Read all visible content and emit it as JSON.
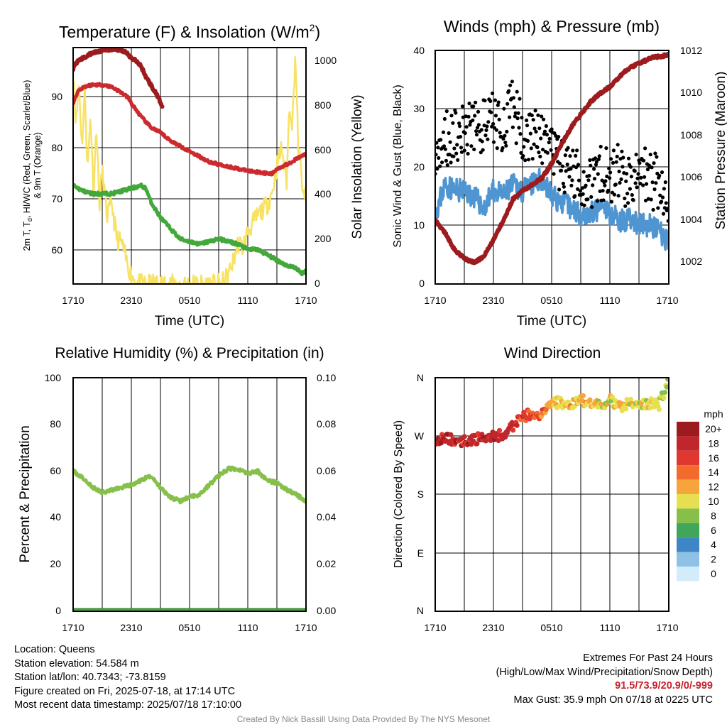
{
  "charts": {
    "tl": {
      "title": "Temperature (F) & Insolation (W/m²)",
      "title_main": "Temperature (F) & Insolation (W/m",
      "title_sup": "2",
      "title_end": ")",
      "xlabel": "Time (UTC)",
      "ylabel_left_line1": "2m T, T",
      "ylabel_left_sub": "d",
      "ylabel_left_rest": ", HI/WC (Red, Green, Scarlet/Blue)",
      "ylabel_left_line2": "& 9m T (Orange)",
      "ylabel_right": "Solar Insolation (Yellow)",
      "yticks_left": [
        "60",
        "70",
        "80",
        "90"
      ],
      "yticks_right": [
        "0",
        "200",
        "400",
        "600",
        "800",
        "1000"
      ],
      "xticks": [
        "1710",
        "2310",
        "0510",
        "1110",
        "1710"
      ]
    },
    "tr": {
      "title": "Winds (mph) & Pressure (mb)",
      "xlabel": "Time (UTC)",
      "ylabel_left": "Sonic Wind & Gust (Blue, Black)",
      "ylabel_right": "Station Pressure (Maroon)",
      "yticks_left": [
        "0",
        "10",
        "20",
        "30",
        "40"
      ],
      "yticks_right": [
        "1002",
        "1004",
        "1006",
        "1008",
        "1010",
        "1012"
      ],
      "xticks": [
        "1710",
        "2310",
        "0510",
        "1110",
        "1710"
      ]
    },
    "bl": {
      "title": "Relative Humidity (%) & Precipitation (in)",
      "ylabel_left": "Percent & Precipitation",
      "yticks_left": [
        "0",
        "20",
        "40",
        "60",
        "80",
        "100"
      ],
      "yticks_right": [
        "0.00",
        "0.02",
        "0.04",
        "0.06",
        "0.08",
        "0.10"
      ],
      "xticks": [
        "1710",
        "2310",
        "0510",
        "1110",
        "1710"
      ]
    },
    "br": {
      "title": "Wind Direction",
      "ylabel_left": "Direction (Colored By Speed)",
      "yticks_left": [
        "N",
        "E",
        "S",
        "W",
        "N"
      ],
      "xticks": [
        "1710",
        "2310",
        "0510",
        "1110",
        "1710"
      ],
      "legend_title": "mph",
      "legend_labels": [
        "20+",
        "18",
        "16",
        "14",
        "12",
        "10",
        "8",
        "6",
        "4",
        "2",
        "0"
      ],
      "legend_colors": [
        "#9b1b1e",
        "#c0272d",
        "#e0382f",
        "#f26a2c",
        "#f8a43c",
        "#e6df4f",
        "#86c04b",
        "#3fa65a",
        "#3f86c6",
        "#8fc1e7",
        "#d3ecfb"
      ]
    }
  },
  "chart_data": [
    {
      "type": "line",
      "title": "Temperature (F) & Insolation (W/m2)",
      "xlabel": "Time (UTC)",
      "x_ticks": [
        "1710",
        "2310",
        "0510",
        "1110",
        "1710"
      ],
      "x_range_hours": [
        0,
        24
      ],
      "ylim_left": [
        53.5,
        98
      ],
      "ylim_right": [
        0,
        1040
      ],
      "colors": {
        "temp": "#cc2a2e",
        "dewpoint": "#43a83a",
        "heat_index": "#9b1b1e",
        "solar": "#f7e264"
      },
      "series": [
        {
          "name": "2m T (Red)",
          "axis": "left",
          "x": [
            0,
            0.5,
            1,
            1.5,
            2,
            3,
            4,
            5,
            5.7,
            6,
            7,
            8,
            9,
            10,
            11,
            12,
            13,
            14,
            15,
            16,
            17,
            18,
            19,
            20,
            20.5,
            21,
            22,
            23,
            23.5,
            24
          ],
          "y": [
            87.5,
            89.8,
            90.5,
            90.8,
            91,
            91,
            90.6,
            89.5,
            88.5,
            87.5,
            85,
            83,
            82,
            80.5,
            79.5,
            78.5,
            77.5,
            76.5,
            76,
            75.6,
            75.2,
            74.8,
            74.6,
            74.3,
            74.2,
            75.2,
            76,
            77,
            77.5,
            78
          ]
        },
        {
          "name": "HI (Scarlet)",
          "axis": "left",
          "x": [
            0,
            0.5,
            1,
            1.5,
            2,
            3,
            4,
            5,
            5.5,
            6,
            6.5,
            7,
            7.5,
            8,
            8.5,
            9.2
          ],
          "y": [
            94,
            95.5,
            96,
            96.5,
            97,
            97.5,
            97.7,
            97.5,
            97,
            96,
            95.5,
            94.5,
            92.5,
            91,
            89.5,
            87
          ]
        },
        {
          "name": "Td (Green)",
          "axis": "left",
          "x": [
            0,
            1,
            2,
            3,
            4,
            5,
            6,
            7,
            7.5,
            8,
            9,
            10,
            11,
            12,
            13,
            14,
            15,
            16,
            17,
            17.5,
            18,
            19,
            20,
            21,
            22,
            23,
            23.5,
            24
          ],
          "y": [
            72,
            71,
            70.5,
            70.5,
            70.5,
            71,
            71.5,
            72,
            71.5,
            69,
            66,
            64,
            62,
            61.5,
            61,
            61.5,
            62,
            61.5,
            61,
            60.5,
            60,
            60,
            59,
            58,
            57,
            56.5,
            55.5,
            56
          ]
        },
        {
          "name": "Solar (Yellow)",
          "axis": "right",
          "x": [
            0,
            0.3,
            0.6,
            0.9,
            1.2,
            1.5,
            1.8,
            2.1,
            2.4,
            2.7,
            3,
            3.5,
            4,
            4.5,
            5,
            5.5,
            6,
            6.5,
            7,
            8,
            10,
            12,
            14,
            15.3,
            16,
            16.5,
            17,
            17.5,
            18,
            19,
            20,
            20.5,
            21,
            21.5,
            22,
            22.3,
            22.6,
            22.9,
            23.2,
            23.5,
            23.8,
            24
          ],
          "y": [
            950,
            700,
            900,
            600,
            850,
            500,
            760,
            400,
            700,
            350,
            500,
            300,
            350,
            200,
            180,
            100,
            40,
            10,
            0,
            0,
            0,
            0,
            0,
            0,
            40,
            100,
            180,
            160,
            230,
            300,
            350,
            400,
            520,
            600,
            450,
            800,
            700,
            1020,
            600,
            500,
            350,
            420
          ]
        }
      ]
    },
    {
      "type": "line",
      "title": "Winds (mph) & Pressure (mb)",
      "xlabel": "Time (UTC)",
      "x_ticks": [
        "1710",
        "2310",
        "0510",
        "1110",
        "1710"
      ],
      "x_range_hours": [
        0,
        24
      ],
      "ylim_left": [
        0,
        40
      ],
      "ylim_right": [
        1001,
        1012
      ],
      "colors": {
        "wind": "#4f95d1",
        "gust": "#000000",
        "pressure": "#9b1b1e"
      },
      "series": [
        {
          "name": "Sonic Wind (Blue)",
          "axis": "left",
          "x": [
            0,
            1,
            2,
            3,
            4,
            5,
            6,
            7,
            8,
            9,
            10,
            11,
            12,
            13,
            14,
            15,
            16,
            17,
            18,
            19,
            20,
            21,
            22,
            23,
            24
          ],
          "y": [
            12,
            17,
            16,
            16,
            15,
            13,
            16,
            15,
            17,
            16,
            17,
            18,
            15,
            14,
            13,
            12,
            12,
            13,
            12,
            11,
            11,
            10,
            10,
            9,
            7
          ]
        },
        {
          "name": "Gust (Black)",
          "axis": "left",
          "x": [
            0,
            1,
            2,
            3,
            4,
            5,
            6,
            7,
            8,
            9,
            10,
            11,
            12,
            13,
            14,
            15,
            16,
            17,
            18,
            19,
            20,
            21,
            22,
            23,
            24
          ],
          "y": [
            20,
            25,
            26,
            26,
            27,
            27,
            28,
            27,
            30,
            26,
            26,
            24,
            22,
            20,
            19,
            18,
            18,
            19,
            19,
            19,
            17,
            19,
            18,
            17,
            15
          ]
        },
        {
          "name": "Station Pressure (Maroon)",
          "axis": "right",
          "x": [
            0,
            0.5,
            1,
            1.5,
            2,
            3,
            4,
            5,
            5.5,
            6,
            7,
            8,
            9,
            10,
            11,
            12,
            13,
            14,
            15,
            16,
            17,
            18,
            19,
            20,
            21,
            22,
            22.5,
            23,
            24
          ],
          "y": [
            1004.0,
            1003.7,
            1003.4,
            1003.0,
            1002.6,
            1002.2,
            1002.0,
            1002.3,
            1002.7,
            1003.1,
            1004.0,
            1005.0,
            1005.4,
            1005.7,
            1006.0,
            1006.7,
            1007.6,
            1008.4,
            1009.0,
            1009.6,
            1010.0,
            1010.3,
            1010.8,
            1011.2,
            1011.4,
            1011.6,
            1011.7,
            1011.7,
            1011.8
          ]
        }
      ]
    },
    {
      "type": "line",
      "title": "Relative Humidity (%) & Precipitation (in)",
      "x_ticks": [
        "1710",
        "2310",
        "0510",
        "1110",
        "1710"
      ],
      "x_range_hours": [
        0,
        24
      ],
      "ylim_left": [
        0,
        100
      ],
      "ylim_right": [
        0,
        0.1
      ],
      "colors": {
        "rh": "#86c04b",
        "precip": "#3a8f3a"
      },
      "series": [
        {
          "name": "RH",
          "axis": "left",
          "x": [
            0,
            1,
            2,
            3,
            4,
            5,
            6,
            7,
            8,
            9,
            10,
            11,
            12,
            13,
            14,
            15,
            16,
            17,
            18,
            19,
            20,
            21,
            22,
            23,
            24
          ],
          "y": [
            60,
            57,
            53,
            51,
            52,
            53,
            54,
            56,
            58,
            53,
            49,
            47,
            49,
            50,
            54,
            58,
            61,
            61,
            59,
            60,
            56,
            55,
            52,
            50,
            47
          ]
        },
        {
          "name": "Precipitation",
          "axis": "right",
          "x": [
            0,
            24
          ],
          "y": [
            0,
            0
          ]
        }
      ]
    },
    {
      "type": "scatter",
      "title": "Wind Direction",
      "x_ticks": [
        "1710",
        "2310",
        "0510",
        "1110",
        "1710"
      ],
      "x_range_hours": [
        0,
        24
      ],
      "y_categories": [
        "N",
        "E",
        "S",
        "W",
        "N"
      ],
      "ylim_degrees": [
        0,
        360
      ],
      "series": [
        {
          "name": "Direction",
          "axis": "left",
          "x": [
            0,
            1,
            2,
            3,
            4,
            5,
            6,
            7,
            8,
            9,
            10,
            11,
            12,
            13,
            14,
            15,
            16,
            17,
            18,
            19,
            20,
            21,
            22,
            23,
            24
          ],
          "y": [
            265,
            268,
            264,
            262,
            265,
            268,
            270,
            272,
            285,
            300,
            305,
            303,
            320,
            322,
            318,
            325,
            322,
            318,
            325,
            315,
            320,
            318,
            322,
            318,
            355
          ],
          "speed": [
            18,
            19,
            18,
            18,
            17,
            18,
            18,
            17,
            17,
            16,
            15,
            14,
            12,
            11,
            12,
            11,
            12,
            10,
            10,
            11,
            10,
            9,
            11,
            9,
            8
          ]
        }
      ]
    }
  ],
  "info_left": {
    "location": "Location: Queens",
    "elevation": "Station elevation: 54.584 m",
    "latlon": "Station lat/lon: 40.7343; -73.8159",
    "created": "Figure created on Fri, 2025-07-18, at 17:14 UTC",
    "recent": "Most recent data timestamp: 2025/07/18 17:10:00"
  },
  "info_right": {
    "line1": "Extremes For Past 24 Hours",
    "line2": "(High/Low/Max Wind/Precipitation/Snow Depth)",
    "values": "91.5/73.9/20.9/0/-999",
    "gust": "Max Gust: 35.9 mph On 07/18 at 0225 UTC"
  },
  "footer": "Created By Nick Bassill Using Data Provided By The NYS Mesonet"
}
